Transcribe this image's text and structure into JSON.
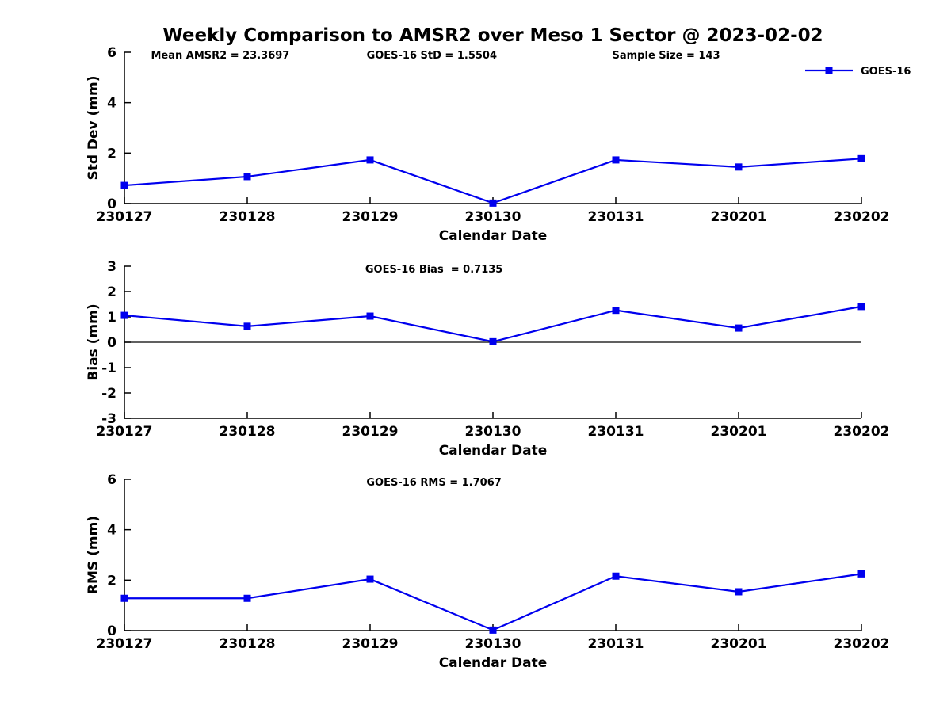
{
  "figure": {
    "title": "Weekly Comparison to AMSR2 over Meso 1 Sector @ 2023-02-02",
    "colors": {
      "line": "#0000EE",
      "axis": "#000000",
      "text": "#000000",
      "background": "#FFFFFF"
    },
    "legend": {
      "label": "GOES-16",
      "position": "top-right"
    }
  },
  "chart_data": [
    {
      "id": "stddev",
      "type": "line",
      "categories": [
        "230127",
        "230128",
        "230129",
        "230130",
        "230131",
        "230201",
        "230202"
      ],
      "series": [
        {
          "name": "GOES-16",
          "values": [
            0.72,
            1.07,
            1.73,
            0.02,
            1.73,
            1.45,
            1.78
          ]
        }
      ],
      "xlabel": "Calendar Date",
      "ylabel": "Std Dev (mm)",
      "ylim": [
        0,
        6
      ],
      "yticks": [
        0,
        2,
        4,
        6
      ],
      "grid": false,
      "legend_entries": [
        "GOES-16"
      ],
      "legend_position": "top-right",
      "annotations": [
        "Mean AMSR2 = 23.3697",
        "GOES-16 StD = 1.5504",
        "Sample Size = 143"
      ]
    },
    {
      "id": "bias",
      "type": "line",
      "categories": [
        "230127",
        "230128",
        "230129",
        "230130",
        "230131",
        "230201",
        "230202"
      ],
      "series": [
        {
          "name": "GOES-16",
          "values": [
            1.06,
            0.63,
            1.03,
            0.02,
            1.26,
            0.56,
            1.41
          ]
        }
      ],
      "xlabel": "Calendar Date",
      "ylabel": "Bias (mm)",
      "ylim": [
        -3,
        3
      ],
      "yticks": [
        -3,
        -2,
        -1,
        0,
        1,
        2,
        3
      ],
      "zero_line": true,
      "grid": false,
      "annotations": [
        "GOES-16 Bias  = 0.7135"
      ]
    },
    {
      "id": "rms",
      "type": "line",
      "categories": [
        "230127",
        "230128",
        "230129",
        "230130",
        "230131",
        "230201",
        "230202"
      ],
      "series": [
        {
          "name": "GOES-16",
          "values": [
            1.28,
            1.28,
            2.04,
            0.02,
            2.16,
            1.54,
            2.25
          ]
        }
      ],
      "xlabel": "Calendar Date",
      "ylabel": "RMS (mm)",
      "ylim": [
        0,
        6
      ],
      "yticks": [
        0,
        2,
        4,
        6
      ],
      "grid": false,
      "annotations": [
        "GOES-16 RMS = 1.7067"
      ]
    }
  ]
}
